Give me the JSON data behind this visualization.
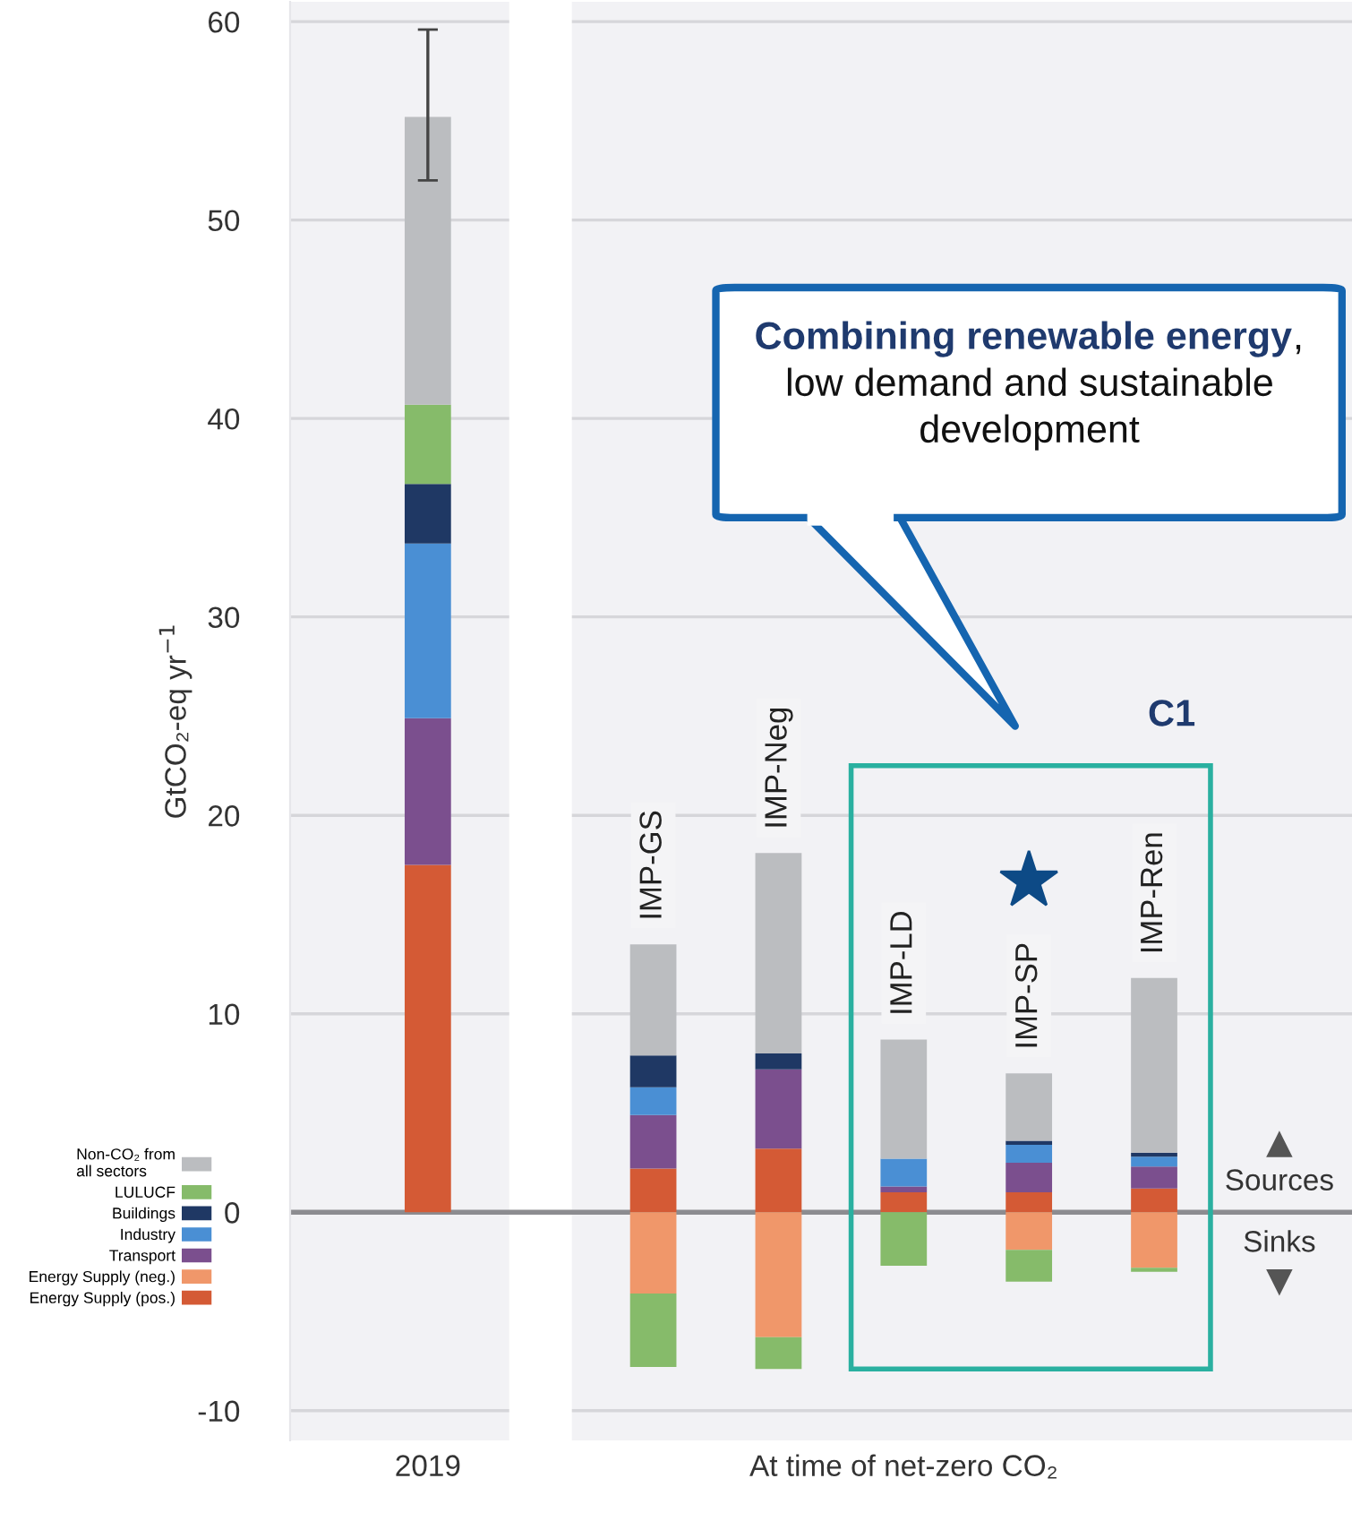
{
  "chart_data": {
    "type": "bar",
    "stacked": true,
    "categories": [
      "2019",
      "IMP-GS",
      "IMP-Neg",
      "IMP-LD",
      "IMP-SP",
      "IMP-Ren"
    ],
    "series": [
      {
        "name": "Energy Supply (pos.)",
        "color": "#d45a35",
        "values": [
          17.5,
          2.2,
          3.2,
          1.0,
          1.0,
          1.2
        ]
      },
      {
        "name": "Energy Supply (neg.)",
        "color": "#f0976a",
        "values": [
          null,
          -4.1,
          -6.3,
          null,
          -1.9,
          -2.8
        ]
      },
      {
        "name": "Transport",
        "color": "#7b4f8e",
        "values": [
          7.4,
          2.7,
          4.0,
          0.3,
          1.5,
          1.1
        ]
      },
      {
        "name": "Industry",
        "color": "#4a8fd4",
        "values": [
          8.8,
          1.4,
          null,
          1.4,
          0.9,
          0.5
        ]
      },
      {
        "name": "Buildings",
        "color": "#1f3864",
        "values": [
          3.0,
          1.6,
          0.8,
          null,
          0.2,
          0.2
        ]
      },
      {
        "name": "LULUCF",
        "color": "#86bb6a",
        "values": [
          4.0,
          -3.7,
          -1.6,
          -2.7,
          -1.6,
          -0.2
        ]
      },
      {
        "name": "Non-CO₂ from all sectors",
        "color": "#bbbdc0",
        "values": [
          14.5,
          5.6,
          10.1,
          6.0,
          3.4,
          8.8
        ],
        "errors": [
          [
            52.0,
            59.6
          ],
          null,
          null,
          null,
          null,
          null
        ]
      }
    ],
    "ylabel": "GtCO₂-eq yr$^{−1}$",
    "ylim": [
      -11.5,
      61
    ],
    "yticks": [
      -10,
      0,
      10,
      20,
      30,
      40,
      50,
      60
    ],
    "grid": "y",
    "legend": "left",
    "annotations": [
      "Combining renewable energy",
      ", low demand and sustainable development",
      "C1",
      "Sources",
      "Sinks",
      "At time of net-zero CO₂"
    ]
  }
}
